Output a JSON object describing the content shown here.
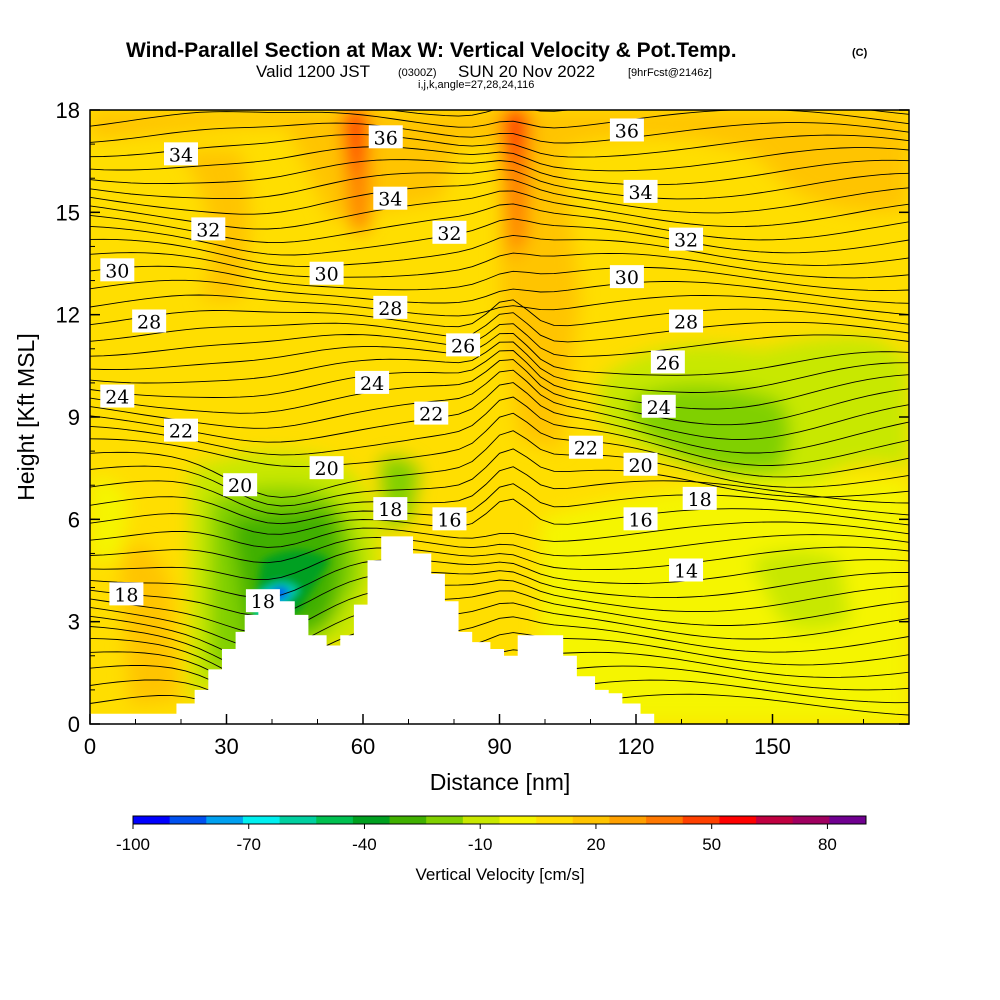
{
  "header": {
    "title": "Wind-Parallel Section at Max W: Vertical Velocity & Pot.Temp.",
    "copyright": "(C)",
    "valid_prefix": "Valid 1200 JST",
    "valid_utc": "(0300Z)",
    "valid_date": "SUN 20 Nov 2022",
    "forecast_info": "[9hrFcst@2146z]",
    "indices": "i,j,k,angle=27,28,24,116"
  },
  "chart_data": {
    "type": "heatmap",
    "title": "Wind-Parallel Section at Max W: Vertical Velocity & Pot.Temp.",
    "xlabel": "Distance [nm]",
    "ylabel": "Height [Kft MSL]",
    "xlim": [
      0,
      180
    ],
    "ylim": [
      0,
      18
    ],
    "x_ticks": [
      "0",
      "30",
      "60",
      "90",
      "120",
      "150"
    ],
    "y_ticks": [
      "0",
      "3",
      "6",
      "9",
      "12",
      "15",
      "18"
    ],
    "x_tick_values": [
      0,
      30,
      60,
      90,
      120,
      150
    ],
    "y_tick_values": [
      0,
      3,
      6,
      9,
      12,
      15,
      18
    ],
    "colorbar": {
      "label": "Vertical Velocity [cm/s]",
      "tick_labels": [
        "-100",
        "-70",
        "-40",
        "-10",
        "20",
        "50",
        "80"
      ],
      "tick_values": [
        -100,
        -70,
        -40,
        -10,
        20,
        50,
        80
      ],
      "bins": [
        -100,
        -90,
        -80,
        -70,
        -60,
        -50,
        -40,
        -30,
        -20,
        -10,
        0,
        10,
        20,
        30,
        40,
        50,
        60,
        70,
        80,
        90
      ],
      "colors": [
        "#0000ff",
        "#0050f0",
        "#00a0f0",
        "#00f0f0",
        "#00d0a0",
        "#00c050",
        "#00a020",
        "#40b000",
        "#80d000",
        "#c8e800",
        "#f5f500",
        "#ffde00",
        "#ffc400",
        "#ffa000",
        "#ff7800",
        "#ff4000",
        "#ff0000",
        "#c00040",
        "#a00060",
        "#700090"
      ]
    },
    "terrain": [
      [
        0,
        0.3
      ],
      [
        19,
        0.3
      ],
      [
        19,
        0.6
      ],
      [
        23,
        0.6
      ],
      [
        23,
        1.0
      ],
      [
        26,
        1.0
      ],
      [
        26,
        1.6
      ],
      [
        29,
        1.6
      ],
      [
        29,
        2.2
      ],
      [
        32,
        2.2
      ],
      [
        32,
        2.7
      ],
      [
        34,
        2.7
      ],
      [
        34,
        3.2
      ],
      [
        37,
        3.2
      ],
      [
        37,
        3.6
      ],
      [
        45,
        3.6
      ],
      [
        45,
        3.2
      ],
      [
        48,
        3.2
      ],
      [
        48,
        2.6
      ],
      [
        52,
        2.6
      ],
      [
        52,
        2.3
      ],
      [
        55,
        2.3
      ],
      [
        55,
        2.6
      ],
      [
        58,
        2.6
      ],
      [
        58,
        3.5
      ],
      [
        61,
        3.5
      ],
      [
        61,
        4.8
      ],
      [
        64,
        4.8
      ],
      [
        64,
        5.5
      ],
      [
        71,
        5.5
      ],
      [
        71,
        5.0
      ],
      [
        75,
        5.0
      ],
      [
        75,
        4.4
      ],
      [
        78,
        4.4
      ],
      [
        78,
        3.6
      ],
      [
        81,
        3.6
      ],
      [
        81,
        2.7
      ],
      [
        84,
        2.7
      ],
      [
        84,
        2.4
      ],
      [
        88,
        2.4
      ],
      [
        88,
        2.2
      ],
      [
        91,
        2.2
      ],
      [
        91,
        2.0
      ],
      [
        94,
        2.0
      ],
      [
        94,
        2.6
      ],
      [
        104,
        2.6
      ],
      [
        104,
        2.0
      ],
      [
        107,
        2.0
      ],
      [
        107,
        1.4
      ],
      [
        111,
        1.4
      ],
      [
        111,
        1.0
      ],
      [
        114,
        1.0
      ],
      [
        114,
        0.9
      ],
      [
        117,
        0.9
      ],
      [
        117,
        0.6
      ],
      [
        121,
        0.6
      ],
      [
        121,
        0.3
      ],
      [
        124,
        0.3
      ],
      [
        124,
        0.0
      ]
    ],
    "contour_labels": [
      {
        "text": "34",
        "x": 20,
        "y": 16.7
      },
      {
        "text": "36",
        "x": 65,
        "y": 17.2
      },
      {
        "text": "36",
        "x": 118,
        "y": 17.4
      },
      {
        "text": "34",
        "x": 66,
        "y": 15.4
      },
      {
        "text": "34",
        "x": 121,
        "y": 15.6
      },
      {
        "text": "32",
        "x": 26,
        "y": 14.5
      },
      {
        "text": "32",
        "x": 79,
        "y": 14.4
      },
      {
        "text": "32",
        "x": 131,
        "y": 14.2
      },
      {
        "text": "30",
        "x": 6,
        "y": 13.3
      },
      {
        "text": "30",
        "x": 52,
        "y": 13.2
      },
      {
        "text": "30",
        "x": 118,
        "y": 13.1
      },
      {
        "text": "28",
        "x": 13,
        "y": 11.8
      },
      {
        "text": "28",
        "x": 66,
        "y": 12.2
      },
      {
        "text": "28",
        "x": 131,
        "y": 11.8
      },
      {
        "text": "26",
        "x": 82,
        "y": 11.1
      },
      {
        "text": "26",
        "x": 127,
        "y": 10.6
      },
      {
        "text": "24",
        "x": 6,
        "y": 9.6
      },
      {
        "text": "24",
        "x": 62,
        "y": 10.0
      },
      {
        "text": "24",
        "x": 125,
        "y": 9.3
      },
      {
        "text": "22",
        "x": 20,
        "y": 8.6
      },
      {
        "text": "22",
        "x": 75,
        "y": 9.1
      },
      {
        "text": "22",
        "x": 109,
        "y": 8.1
      },
      {
        "text": "20",
        "x": 33,
        "y": 7.0
      },
      {
        "text": "20",
        "x": 52,
        "y": 7.5
      },
      {
        "text": "20",
        "x": 121,
        "y": 7.6
      },
      {
        "text": "18",
        "x": 66,
        "y": 6.3
      },
      {
        "text": "18",
        "x": 134,
        "y": 6.6
      },
      {
        "text": "18",
        "x": 8,
        "y": 3.8
      },
      {
        "text": "18",
        "x": 38,
        "y": 3.6
      },
      {
        "text": "16",
        "x": 79,
        "y": 6.0
      },
      {
        "text": "16",
        "x": 121,
        "y": 6.0
      },
      {
        "text": "14",
        "x": 131,
        "y": 4.5
      }
    ]
  }
}
